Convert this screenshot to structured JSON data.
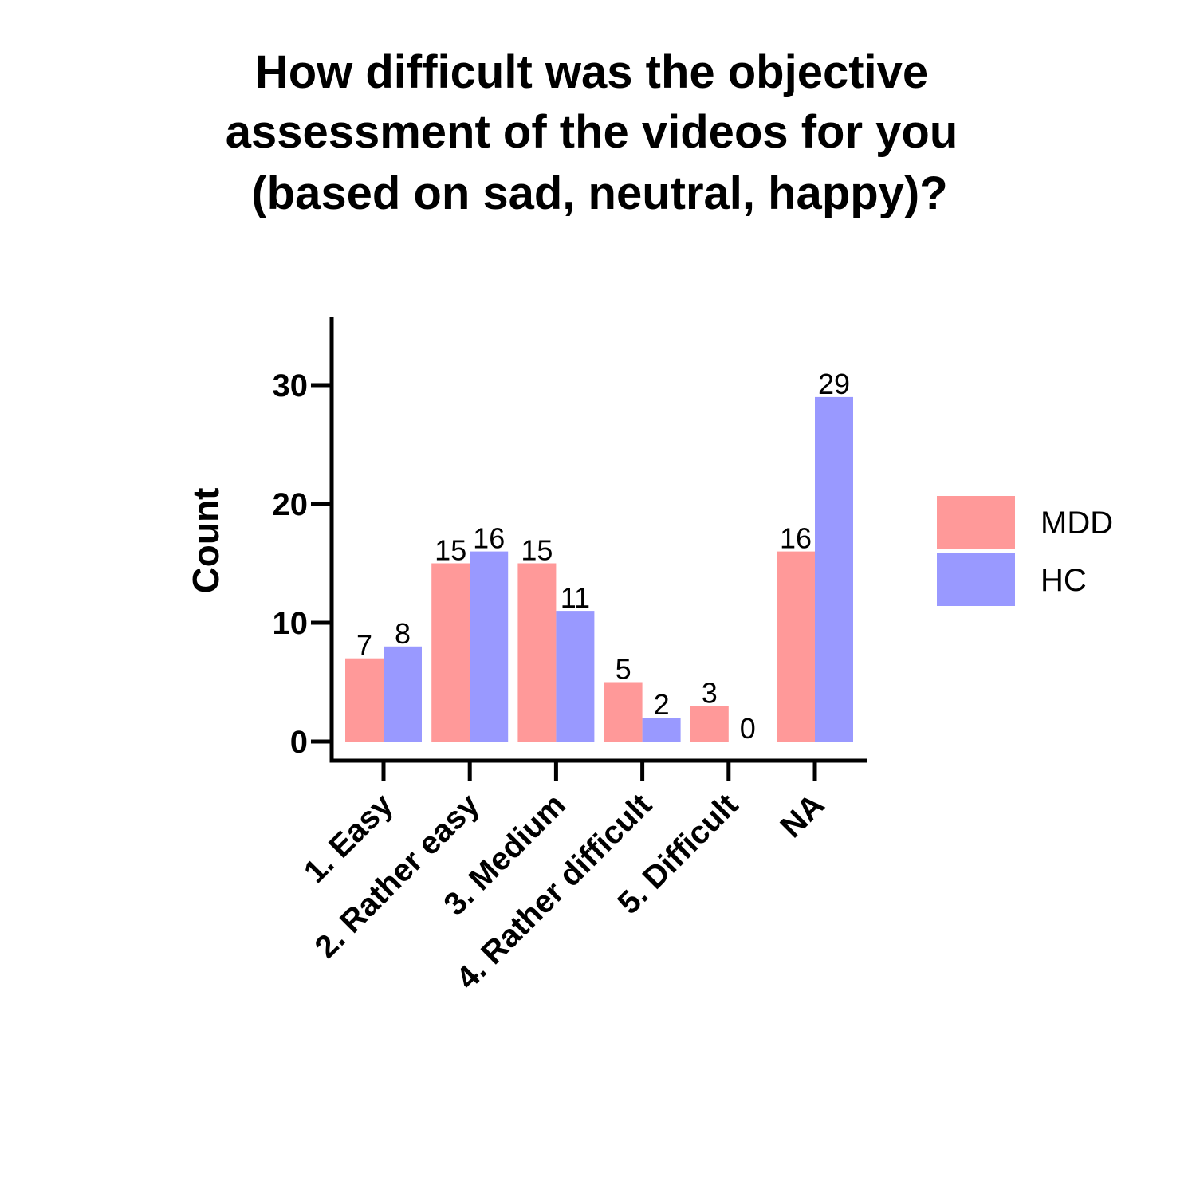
{
  "title": [
    "How difficult was the objective",
    "assessment of the videos for you",
    "(based on sad, neutral, happy)?"
  ],
  "chart_data": {
    "type": "bar",
    "title": "How difficult was the objective assessment of the videos for you (based on sad, neutral, happy)?",
    "xlabel": "",
    "ylabel": "Count",
    "categories": [
      "1. Easy",
      "2. Rather easy",
      "3. Medium",
      "4. Rather difficult",
      "5. Difficult",
      "NA"
    ],
    "series": [
      {
        "name": "MDD",
        "values": [
          7,
          15,
          15,
          5,
          3,
          16
        ],
        "color": "#ff9999"
      },
      {
        "name": "HC",
        "values": [
          8,
          16,
          11,
          2,
          0,
          29
        ],
        "color": "#9999ff"
      }
    ],
    "yticks": [
      0,
      10,
      20,
      30
    ],
    "ylim": [
      0,
      36
    ],
    "grid": false,
    "legend_position": "right"
  }
}
